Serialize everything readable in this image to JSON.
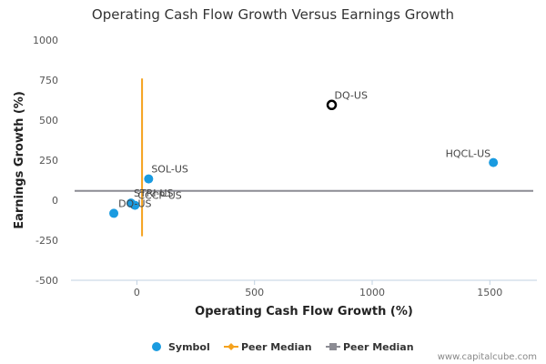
{
  "chart_data": {
    "type": "scatter",
    "title": "Operating Cash Flow Growth Versus Earnings Growth",
    "xlabel": "Operating Cash Flow Growth (%)",
    "ylabel": "Earnings Growth (%)",
    "xlim": [
      -280,
      1700
    ],
    "ylim": [
      -500,
      1000
    ],
    "xticks": [
      0,
      500,
      1000,
      1500
    ],
    "yticks": [
      1000,
      750,
      500,
      250,
      0,
      -250,
      -500
    ],
    "grid": false,
    "legend_position": "bottom",
    "colors": {
      "symbol": "#1a9be0",
      "peer_median_x": "#f5a21d",
      "peer_median_y": "#8c8c94",
      "highlight": "#000000"
    },
    "points": [
      {
        "label": "DQ-US",
        "x": 828,
        "y": 595,
        "highlight": true
      },
      {
        "label": "HQCL-US",
        "x": 1515,
        "y": 235,
        "highlight": false
      },
      {
        "label": "SOL-US",
        "x": 50,
        "y": 133,
        "highlight": false
      },
      {
        "label": "STRI-US",
        "x": -25,
        "y": -18,
        "highlight": false
      },
      {
        "label": "CCCP-US",
        "x": -8,
        "y": -32,
        "highlight": false
      },
      {
        "label": "DQ-US",
        "x": -98,
        "y": -82,
        "highlight": false
      }
    ],
    "peer_median_x": {
      "x": 22,
      "y_from": -225,
      "y_to": 760
    },
    "peer_median_y": {
      "y": 58
    },
    "legend": [
      {
        "label": "Symbol",
        "kind": "dot"
      },
      {
        "label": "Peer Median",
        "kind": "vline"
      },
      {
        "label": "Peer Median",
        "kind": "hline"
      }
    ]
  },
  "footer": {
    "credit": "www.capitalcube.com"
  }
}
